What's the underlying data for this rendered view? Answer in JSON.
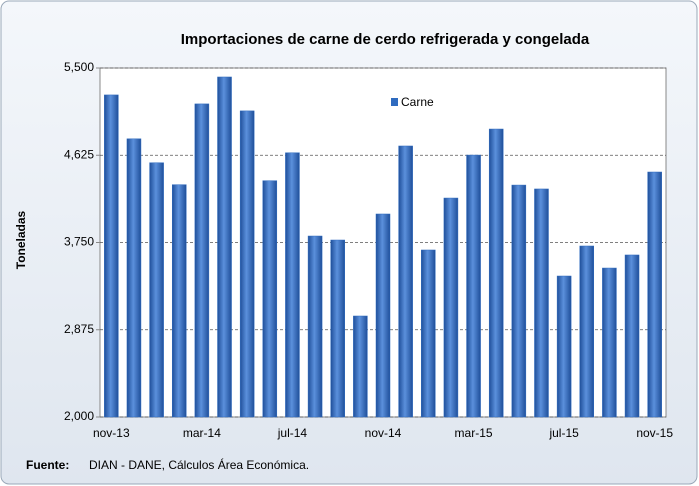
{
  "chart_data": {
    "type": "bar",
    "title": "Importaciones de carne de cerdo refrigerada y congelada",
    "y_label": "Toneladas",
    "categories": [
      "nov-13",
      null,
      null,
      null,
      "mar-14",
      null,
      null,
      null,
      "jul-14",
      null,
      null,
      null,
      "nov-14",
      null,
      null,
      null,
      "mar-15",
      null,
      null,
      null,
      "jul-15",
      null,
      null,
      null,
      "nov-15"
    ],
    "series": [
      {
        "name": "Carne",
        "color": "#2f6bbf",
        "values": [
          5230,
          4790,
          4550,
          4330,
          5140,
          5410,
          5070,
          4370,
          4650,
          3815,
          3775,
          3013,
          4036,
          4718,
          3675,
          4196,
          4627,
          4888,
          4326,
          4287,
          3414,
          3715,
          3494,
          3625,
          4457
        ]
      }
    ],
    "ylim": [
      2000,
      5500
    ],
    "yticks": [
      {
        "value": 2000,
        "label": "2,000"
      },
      {
        "value": 2875,
        "label": "2,875"
      },
      {
        "value": 3750,
        "label": "3,750"
      },
      {
        "value": 4625,
        "label": "4,625"
      },
      {
        "value": 5500,
        "label": "5,500"
      }
    ],
    "grid": true,
    "legend": "top",
    "source": {
      "label": "Fuente:",
      "text": "DIAN - DANE,  Cálculos Área Económica."
    }
  }
}
